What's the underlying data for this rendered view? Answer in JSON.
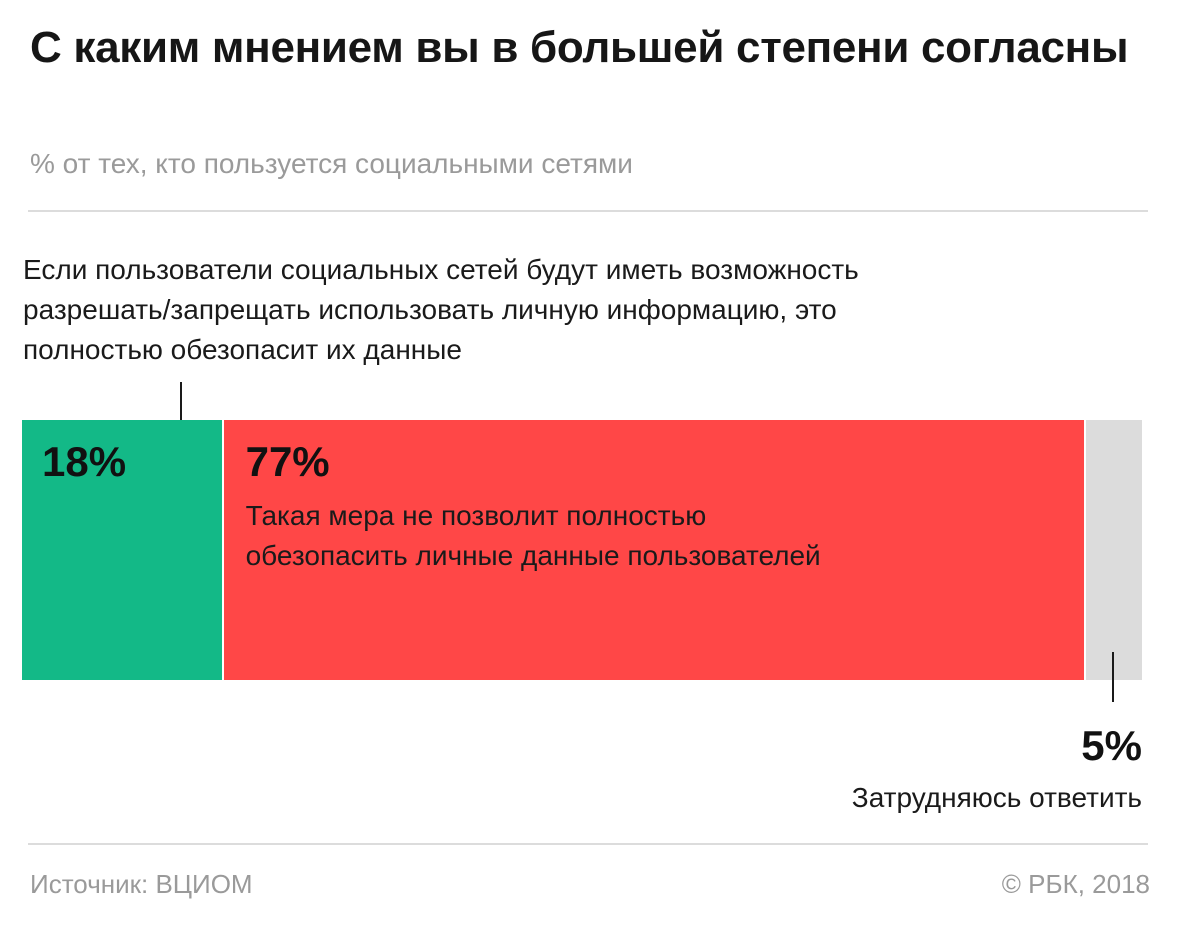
{
  "header": {
    "title": "С каким мнением вы в большей степени согласны",
    "subtitle": "% от тех, кто пользуется социальными сетями"
  },
  "annotation_left": "Если пользователи социальных сетей будут иметь возможность разрешать/запрещать использовать личную информацию, это полностью обезопасит их данные",
  "footer": {
    "source": "Источник: ВЦИОМ",
    "copyright": "© РБК, 2018"
  },
  "chart_data": {
    "type": "bar",
    "orientation": "horizontal-stacked",
    "title": "С каким мнением вы в большей степени согласны",
    "subtitle": "% от тех, кто пользуется социальными сетями",
    "unit": "%",
    "segments": [
      {
        "value": 18,
        "value_label": "18%",
        "category": "Если пользователи социальных сетей будут иметь возможность разрешать/запрещать использовать личную информацию, это полностью обезопасит их данные",
        "color": "#13b987"
      },
      {
        "value": 77,
        "value_label": "77%",
        "category": "Такая мера не позволит полностью обезопасить личные данные пользователей",
        "color": "#ff4747"
      },
      {
        "value": 5,
        "value_label": "5%",
        "category": "Затрудняюсь ответить",
        "color": "#dcdcdc"
      }
    ],
    "total": 100
  }
}
